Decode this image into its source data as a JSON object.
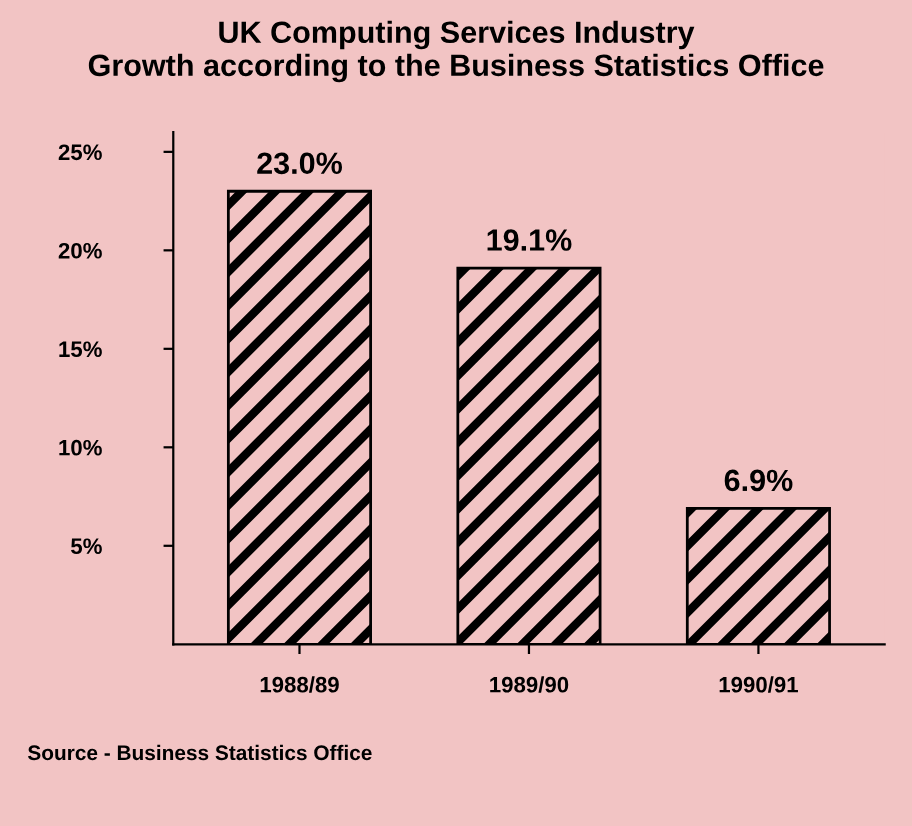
{
  "chart_data": {
    "type": "bar",
    "title": "UK Computing Services Industry\nGrowth according to the Business Statistics Office",
    "categories": [
      "1988/89",
      "1989/90",
      "1990/91"
    ],
    "values": [
      23.0,
      19.1,
      6.9
    ],
    "value_labels": [
      "23.0%",
      "19.1%",
      "6.9%"
    ],
    "color": "#000000",
    "ylim": [
      0,
      26
    ],
    "yticks": [
      {
        "value": 5,
        "label": "5%"
      },
      {
        "value": 10,
        "label": "10%"
      },
      {
        "value": 15,
        "label": "15%"
      },
      {
        "value": 20,
        "label": "20%"
      },
      {
        "value": 25,
        "label": "25%"
      }
    ],
    "annotations": [
      "Source - Business Statistics Office"
    ],
    "grid": false,
    "legend": false
  }
}
